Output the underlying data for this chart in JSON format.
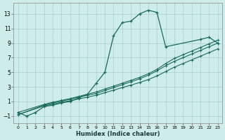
{
  "xlabel": "Humidex (Indice chaleur)",
  "ylabel": "",
  "bg_color": "#ceecea",
  "grid_color": "#aed4d0",
  "line_color": "#1a6b5a",
  "xlim": [
    -0.5,
    23.5
  ],
  "ylim": [
    -2,
    14.5
  ],
  "xticks": [
    0,
    1,
    2,
    3,
    4,
    5,
    6,
    7,
    8,
    9,
    10,
    11,
    12,
    13,
    14,
    15,
    16,
    17,
    18,
    19,
    20,
    21,
    22,
    23
  ],
  "yticks": [
    -1,
    1,
    3,
    5,
    7,
    9,
    11,
    13
  ],
  "main_series": {
    "x": [
      0,
      1,
      2,
      3,
      4,
      5,
      6,
      7,
      8,
      9,
      10,
      11,
      12,
      13,
      14,
      15,
      16,
      17,
      21,
      22,
      23
    ],
    "y": [
      -0.5,
      -1.0,
      -0.5,
      0.3,
      0.5,
      0.8,
      1.0,
      1.5,
      2.0,
      3.5,
      5.0,
      10.0,
      11.8,
      12.0,
      13.0,
      13.5,
      13.2,
      8.5,
      9.5,
      9.8,
      9.0
    ]
  },
  "linear_series": [
    {
      "x": [
        0,
        3,
        4,
        5,
        6,
        7,
        8,
        9,
        10,
        11,
        12,
        13,
        14,
        15,
        16,
        17,
        18,
        19,
        20,
        21,
        22,
        23
      ],
      "y": [
        -0.8,
        0.4,
        0.65,
        0.9,
        1.1,
        1.35,
        1.6,
        1.85,
        2.2,
        2.55,
        2.9,
        3.25,
        3.6,
        4.0,
        4.5,
        5.1,
        5.7,
        6.2,
        6.7,
        7.2,
        7.7,
        8.2
      ]
    },
    {
      "x": [
        0,
        3,
        4,
        5,
        6,
        7,
        8,
        9,
        10,
        11,
        12,
        13,
        14,
        15,
        16,
        17,
        18,
        19,
        20,
        21,
        22,
        23
      ],
      "y": [
        -0.8,
        0.5,
        0.8,
        1.05,
        1.3,
        1.6,
        1.85,
        2.1,
        2.5,
        2.9,
        3.3,
        3.7,
        4.1,
        4.6,
        5.2,
        5.9,
        6.5,
        7.0,
        7.5,
        8.0,
        8.5,
        9.0
      ]
    },
    {
      "x": [
        0,
        3,
        4,
        5,
        6,
        7,
        8,
        9,
        10,
        11,
        12,
        13,
        14,
        15,
        16,
        17,
        18,
        19,
        20,
        21,
        22,
        23
      ],
      "y": [
        -0.5,
        0.6,
        0.9,
        1.15,
        1.4,
        1.7,
        2.0,
        2.3,
        2.7,
        3.1,
        3.5,
        3.9,
        4.3,
        4.8,
        5.4,
        6.2,
        6.9,
        7.4,
        7.9,
        8.4,
        8.9,
        9.4
      ]
    }
  ]
}
